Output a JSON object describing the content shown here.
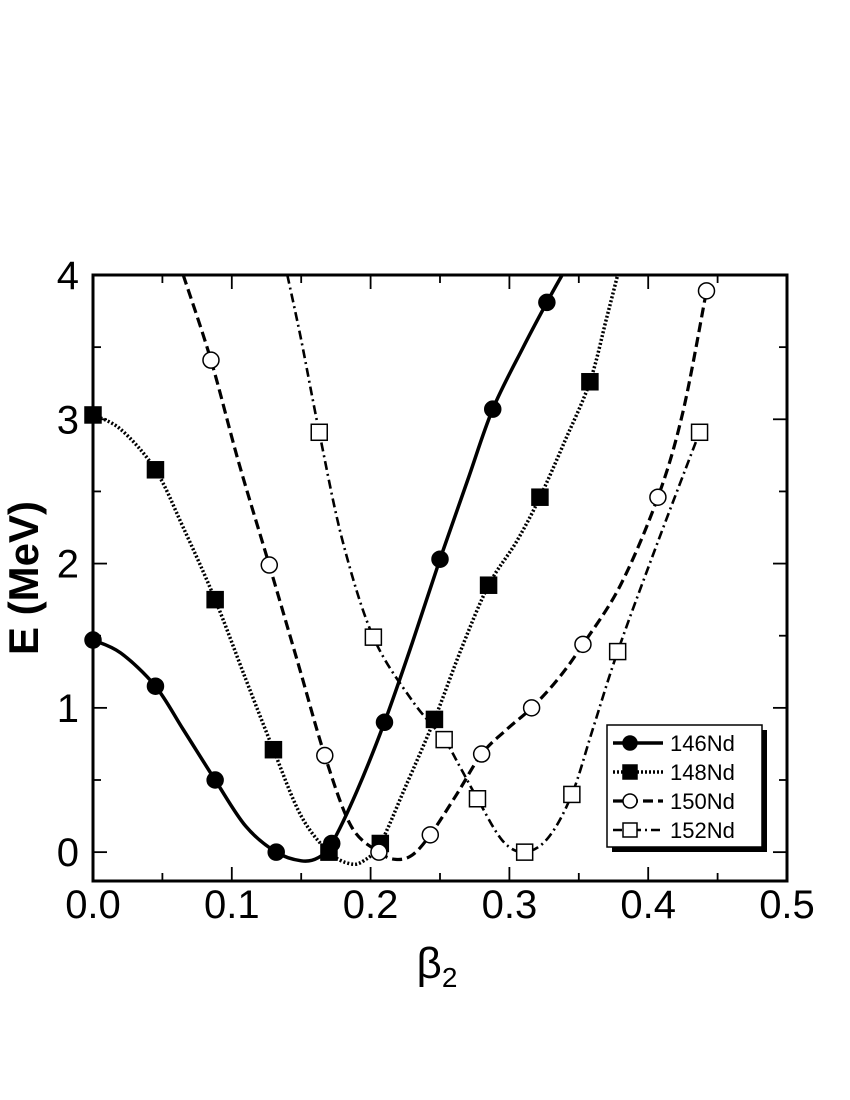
{
  "chart_data": {
    "type": "line",
    "xlabel_main": "β",
    "xlabel_sub": "2",
    "ylabel": "E (MeV)",
    "xlim": [
      0.0,
      0.5
    ],
    "ylim": [
      -0.2,
      4.0
    ],
    "x_ticks": [
      "0.0",
      "0.1",
      "0.2",
      "0.3",
      "0.4",
      "0.5"
    ],
    "y_ticks": [
      "0",
      "1",
      "2",
      "3",
      "4"
    ],
    "grid": false,
    "legend_position": "bottom-right",
    "series": [
      {
        "name": "146Nd",
        "marker": "filled-circle",
        "line_style": "solid",
        "markers": [
          [
            0.0,
            1.47
          ],
          [
            0.045,
            1.15
          ],
          [
            0.088,
            0.5
          ],
          [
            0.132,
            0.0
          ],
          [
            0.172,
            0.06
          ],
          [
            0.21,
            0.9
          ],
          [
            0.25,
            2.03
          ],
          [
            0.288,
            3.07
          ],
          [
            0.327,
            3.81
          ]
        ],
        "curve": [
          [
            0.0,
            1.47
          ],
          [
            0.02,
            1.38
          ],
          [
            0.045,
            1.15
          ],
          [
            0.065,
            0.85
          ],
          [
            0.088,
            0.5
          ],
          [
            0.11,
            0.18
          ],
          [
            0.132,
            0.0
          ],
          [
            0.15,
            -0.06
          ],
          [
            0.162,
            -0.04
          ],
          [
            0.172,
            0.06
          ],
          [
            0.19,
            0.42
          ],
          [
            0.21,
            0.9
          ],
          [
            0.23,
            1.45
          ],
          [
            0.25,
            2.03
          ],
          [
            0.27,
            2.58
          ],
          [
            0.288,
            3.07
          ],
          [
            0.31,
            3.5
          ],
          [
            0.327,
            3.81
          ],
          [
            0.338,
            4.0
          ]
        ]
      },
      {
        "name": "148Nd",
        "marker": "filled-square",
        "line_style": "dotted",
        "markers": [
          [
            0.0,
            3.03
          ],
          [
            0.045,
            2.65
          ],
          [
            0.088,
            1.75
          ],
          [
            0.13,
            0.71
          ],
          [
            0.17,
            0.0
          ],
          [
            0.207,
            0.06
          ],
          [
            0.246,
            0.92
          ],
          [
            0.285,
            1.85
          ],
          [
            0.322,
            2.46
          ],
          [
            0.358,
            3.26
          ]
        ],
        "curve": [
          [
            0.0,
            3.03
          ],
          [
            0.02,
            2.93
          ],
          [
            0.045,
            2.65
          ],
          [
            0.065,
            2.25
          ],
          [
            0.088,
            1.75
          ],
          [
            0.11,
            1.2
          ],
          [
            0.13,
            0.71
          ],
          [
            0.15,
            0.25
          ],
          [
            0.17,
            0.0
          ],
          [
            0.185,
            -0.08
          ],
          [
            0.195,
            -0.06
          ],
          [
            0.207,
            0.06
          ],
          [
            0.225,
            0.45
          ],
          [
            0.246,
            0.92
          ],
          [
            0.265,
            1.4
          ],
          [
            0.285,
            1.85
          ],
          [
            0.305,
            2.15
          ],
          [
            0.322,
            2.46
          ],
          [
            0.34,
            2.85
          ],
          [
            0.358,
            3.26
          ],
          [
            0.37,
            3.7
          ],
          [
            0.378,
            4.0
          ]
        ]
      },
      {
        "name": "150Nd",
        "marker": "open-circle",
        "line_style": "dashed",
        "markers": [
          [
            0.085,
            3.41
          ],
          [
            0.127,
            1.99
          ],
          [
            0.167,
            0.67
          ],
          [
            0.206,
            0.0
          ],
          [
            0.243,
            0.12
          ],
          [
            0.28,
            0.68
          ],
          [
            0.316,
            1.0
          ],
          [
            0.353,
            1.44
          ],
          [
            0.407,
            2.46
          ],
          [
            0.442,
            3.89
          ]
        ],
        "curve": [
          [
            0.065,
            4.0
          ],
          [
            0.085,
            3.41
          ],
          [
            0.105,
            2.7
          ],
          [
            0.127,
            1.99
          ],
          [
            0.148,
            1.3
          ],
          [
            0.167,
            0.67
          ],
          [
            0.186,
            0.18
          ],
          [
            0.206,
            0.0
          ],
          [
            0.218,
            -0.05
          ],
          [
            0.23,
            -0.02
          ],
          [
            0.243,
            0.12
          ],
          [
            0.262,
            0.4
          ],
          [
            0.28,
            0.68
          ],
          [
            0.298,
            0.85
          ],
          [
            0.316,
            1.0
          ],
          [
            0.335,
            1.2
          ],
          [
            0.353,
            1.44
          ],
          [
            0.38,
            1.85
          ],
          [
            0.407,
            2.46
          ],
          [
            0.425,
            3.05
          ],
          [
            0.442,
            3.89
          ]
        ]
      },
      {
        "name": "152Nd",
        "marker": "open-square",
        "line_style": "dash-dot",
        "markers": [
          [
            0.163,
            2.91
          ],
          [
            0.202,
            1.49
          ],
          [
            0.253,
            0.78
          ],
          [
            0.277,
            0.37
          ],
          [
            0.311,
            0.0
          ],
          [
            0.345,
            0.4
          ],
          [
            0.378,
            1.39
          ],
          [
            0.437,
            2.91
          ]
        ],
        "curve": [
          [
            0.14,
            4.0
          ],
          [
            0.15,
            3.55
          ],
          [
            0.163,
            2.91
          ],
          [
            0.18,
            2.15
          ],
          [
            0.202,
            1.49
          ],
          [
            0.23,
            1.05
          ],
          [
            0.253,
            0.78
          ],
          [
            0.265,
            0.58
          ],
          [
            0.277,
            0.37
          ],
          [
            0.295,
            0.08
          ],
          [
            0.311,
            0.0
          ],
          [
            0.328,
            0.1
          ],
          [
            0.345,
            0.4
          ],
          [
            0.36,
            0.85
          ],
          [
            0.378,
            1.39
          ],
          [
            0.405,
            2.1
          ],
          [
            0.437,
            2.91
          ]
        ]
      }
    ]
  }
}
